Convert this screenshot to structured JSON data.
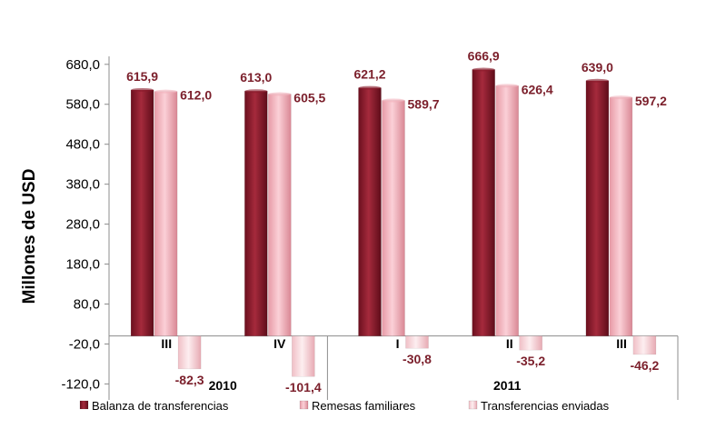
{
  "chart_data": {
    "type": "bar",
    "ylabel": "Millones de  USD",
    "ylim": [
      -160.0,
      700.0
    ],
    "y_ticks": [
      "680,0",
      "580,0",
      "480,0",
      "380,0",
      "280,0",
      "180,0",
      "80,0",
      "-20,0",
      "-120,0"
    ],
    "y_tick_values": [
      680,
      580,
      480,
      380,
      280,
      180,
      80,
      -20,
      -120
    ],
    "categories": [
      "III",
      "IV",
      "I",
      "II",
      "III"
    ],
    "groups": [
      {
        "label": "2010",
        "count": 2
      },
      {
        "label": "2011",
        "count": 3
      }
    ],
    "series": [
      {
        "name": "Balanza de transferencias",
        "values": [
          615.9,
          613.0,
          621.2,
          666.9,
          639.0
        ],
        "labels": [
          "615,9",
          "613,0",
          "621,2",
          "666,9",
          "639,0"
        ],
        "color": "#8b1a2b"
      },
      {
        "name": "Remesas familiares",
        "values": [
          612.0,
          605.5,
          589.7,
          626.4,
          597.2
        ],
        "labels": [
          "612,0",
          "605,5",
          "589,7",
          "626,4",
          "597,2"
        ],
        "color": "#f2b3bd"
      },
      {
        "name": "Transferencias enviadas",
        "values": [
          -82.3,
          -101.4,
          -30.8,
          -35.2,
          -46.2
        ],
        "labels": [
          "-82,3",
          "-101,4",
          "-30,8",
          "-35,2",
          "-46,2"
        ],
        "color": "#f6d3d8"
      }
    ],
    "legend_position": "bottom",
    "grid": false
  }
}
